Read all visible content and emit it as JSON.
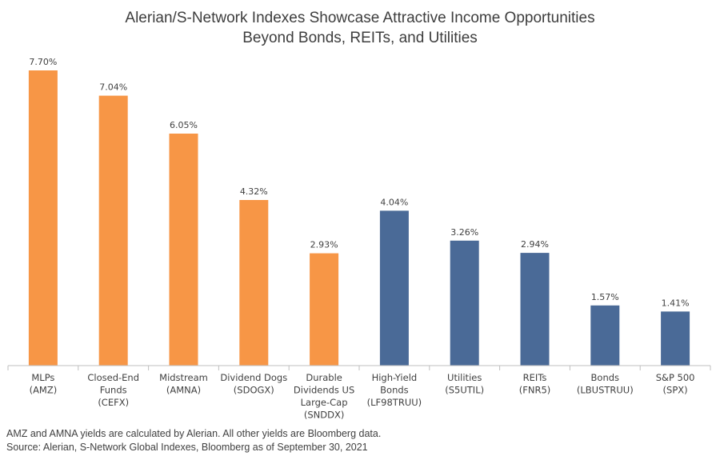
{
  "title_lines": [
    "Alerian/S-Network Indexes Showcase Attractive Income Opportunities",
    "Beyond Bonds, REITs, and Utilities"
  ],
  "footnote_lines": [
    "AMZ and AMNA yields are calculated by Alerian. All other yields are Bloomberg data.",
    "Source: Alerian, S-Network Global Indexes, Bloomberg as of September 30, 2021"
  ],
  "colors": {
    "alerian": "#f79646",
    "other": "#4a6a97",
    "axis": "#bfbfbf"
  },
  "chart_data": {
    "type": "bar",
    "title": "Alerian/S-Network Indexes Showcase Attractive Income Opportunities Beyond Bonds, REITs, and Utilities",
    "xlabel": "",
    "ylabel": "",
    "ylim": [
      0,
      8.2
    ],
    "grid": false,
    "categories": [
      "MLPs (AMZ)",
      "Closed-End Funds (CEFX)",
      "Midstream (AMNA)",
      "Dividend Dogs (SDOGX)",
      "Durable Dividends US Large-Cap (SNDDX)",
      "High-Yield Bonds (LF98TRUU)",
      "Utilities (S5UTIL)",
      "REITs (FNR5)",
      "Bonds (LBUSTRUU)",
      "S&P 500 (SPX)"
    ],
    "category_label_lines": [
      [
        "MLPs",
        "(AMZ)"
      ],
      [
        "Closed-End",
        "Funds",
        "(CEFX)"
      ],
      [
        "Midstream",
        "(AMNA)"
      ],
      [
        "Dividend Dogs",
        "(SDOGX)"
      ],
      [
        "Durable",
        "Dividends US",
        "Large-Cap",
        "(SNDDX)"
      ],
      [
        "High-Yield",
        "Bonds",
        "(LF98TRUU)"
      ],
      [
        "Utilities",
        "(S5UTIL)"
      ],
      [
        "REITs",
        "(FNR5)"
      ],
      [
        "Bonds",
        "(LBUSTRUU)"
      ],
      [
        "S&P 500",
        "(SPX)"
      ]
    ],
    "values": [
      7.7,
      7.04,
      6.05,
      4.32,
      2.93,
      4.04,
      3.26,
      2.94,
      1.57,
      1.41
    ],
    "data_labels": [
      "7.70%",
      "7.04%",
      "6.05%",
      "4.32%",
      "2.93%",
      "4.04%",
      "3.26%",
      "2.94%",
      "1.57%",
      "1.41%"
    ],
    "bar_groups": [
      "alerian",
      "alerian",
      "alerian",
      "alerian",
      "alerian",
      "other",
      "other",
      "other",
      "other",
      "other"
    ]
  }
}
